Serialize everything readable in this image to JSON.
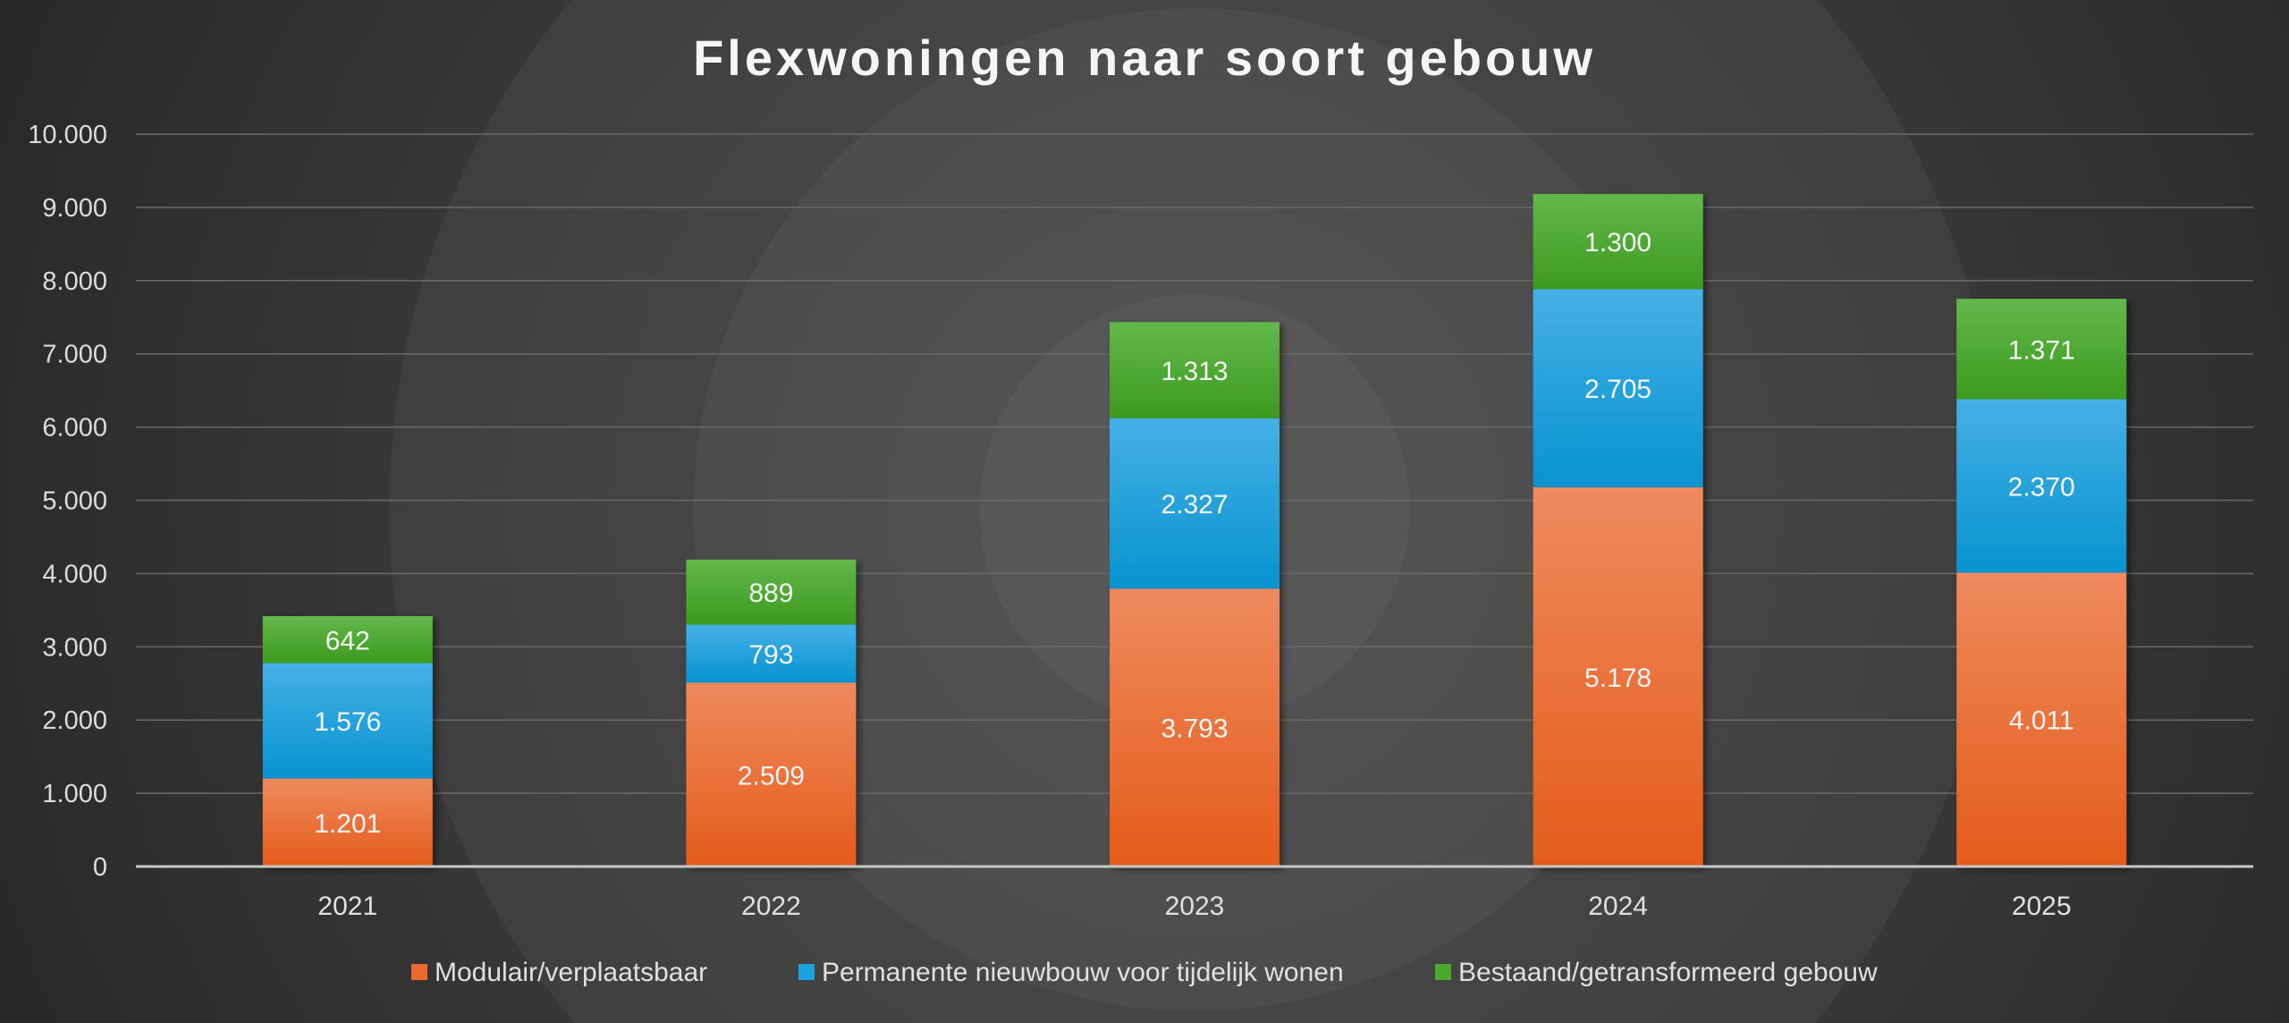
{
  "chart_data": {
    "type": "bar",
    "stacked": true,
    "title": "Flexwoningen naar soort gebouw",
    "xlabel": "",
    "ylabel": "",
    "ylim": [
      0,
      10000
    ],
    "yticks": [
      "0",
      "1.000",
      "2.000",
      "3.000",
      "4.000",
      "5.000",
      "6.000",
      "7.000",
      "8.000",
      "9.000",
      "10.000"
    ],
    "grid": true,
    "legend_position": "bottom",
    "categories": [
      "2021",
      "2022",
      "2023",
      "2024",
      "2025"
    ],
    "series": [
      {
        "name": "Modulair/verplaatsbaar",
        "color": "#ee6a2c",
        "values": [
          1201,
          2509,
          3793,
          5178,
          4011
        ],
        "labels": [
          "1.201",
          "2.509",
          "3.793",
          "5.178",
          "4.011"
        ]
      },
      {
        "name": "Permanente nieuwbouw voor tijdelijk wonen",
        "color": "#1aa3de",
        "values": [
          1576,
          793,
          2327,
          2705,
          2370
        ],
        "labels": [
          "1.576",
          "793",
          "2.327",
          "2.705",
          "2.370"
        ]
      },
      {
        "name": "Bestaand/getransformeerd gebouw",
        "color": "#4ca82a",
        "values": [
          642,
          889,
          1313,
          1300,
          1371
        ],
        "labels": [
          "642",
          "889",
          "1.313",
          "1.300",
          "1.371"
        ]
      }
    ]
  }
}
